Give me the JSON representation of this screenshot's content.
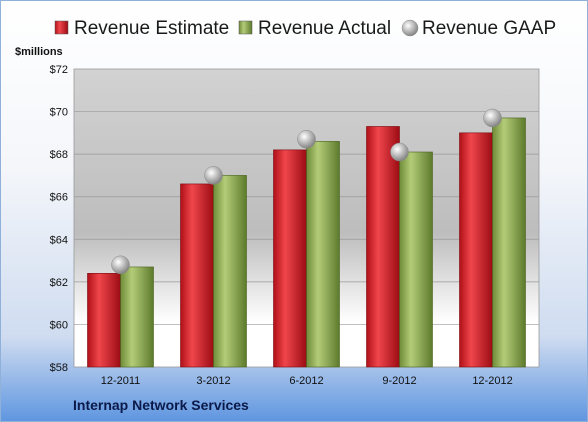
{
  "chart_data": {
    "type": "bar",
    "categories": [
      "12-2011",
      "3-2012",
      "6-2012",
      "9-2012",
      "12-2012"
    ],
    "series": [
      {
        "name": "Revenue Estimate",
        "values": [
          62.4,
          66.6,
          68.2,
          69.3,
          69.0
        ],
        "color": "#d21f26"
      },
      {
        "name": "Revenue Actual",
        "values": [
          62.7,
          67.0,
          68.6,
          68.1,
          69.7
        ],
        "color": "#8aa84a"
      },
      {
        "name": "Revenue GAAP",
        "values": [
          62.8,
          67.0,
          68.7,
          68.1,
          69.7
        ],
        "color": "#b8b8b8",
        "marker": "sphere"
      }
    ],
    "ylabel": "$millions",
    "ylim": [
      58,
      72
    ],
    "yticks": [
      58,
      60,
      62,
      64,
      66,
      68,
      70,
      72
    ],
    "ytick_labels": [
      "$58",
      "$60",
      "$62",
      "$64",
      "$66",
      "$68",
      "$70",
      "$72"
    ],
    "grid": true,
    "legend_position": "top",
    "footer": "Internap Network Services"
  }
}
